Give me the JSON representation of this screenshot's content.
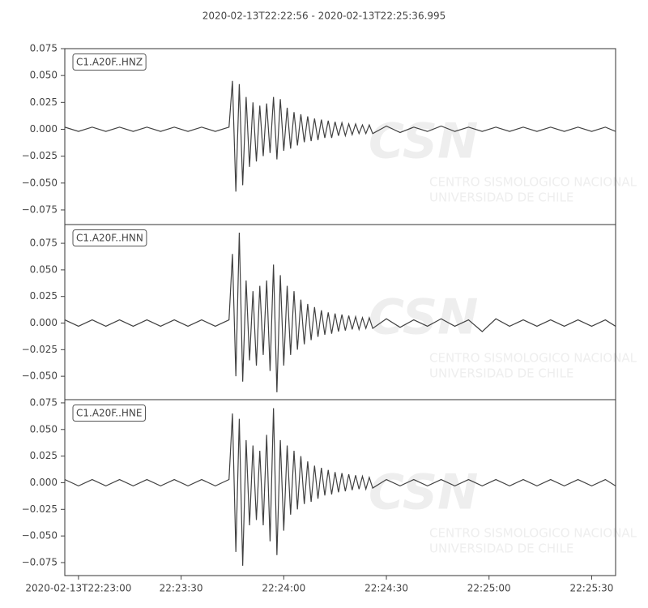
{
  "title": "2020-02-13T22:22:56  -  2020-02-13T22:25:36.995",
  "watermark": {
    "logo": "CSN",
    "line1": "CENTRO SISMOLOGICO NACIONAL",
    "line2": "UNIVERSIDAD DE CHILE"
  },
  "chart_data": [
    {
      "type": "line",
      "x": [
        0,
        4,
        8,
        12,
        16,
        20,
        24,
        28,
        32,
        36,
        40,
        44,
        48,
        49,
        50,
        51,
        52,
        53,
        54,
        55,
        56,
        57,
        58,
        59,
        60,
        61,
        62,
        63,
        64,
        65,
        66,
        67,
        68,
        69,
        70,
        71,
        72,
        73,
        74,
        75,
        76,
        77,
        78,
        79,
        80,
        81,
        82,
        83,
        84,
        85,
        86,
        87,
        88,
        89,
        90,
        94,
        98,
        102,
        106,
        110,
        114,
        118,
        122,
        126,
        130,
        134,
        138,
        142,
        146,
        150,
        154,
        158,
        160.995
      ],
      "series": [
        {
          "name": "C1.A20F..HNZ",
          "color": "#404040",
          "values": [
            0.002,
            -0.002,
            0.002,
            -0.002,
            0.002,
            -0.002,
            0.002,
            -0.002,
            0.002,
            -0.002,
            0.002,
            -0.002,
            0.002,
            0.045,
            -0.058,
            0.042,
            -0.052,
            0.03,
            -0.035,
            0.025,
            -0.03,
            0.022,
            -0.025,
            0.024,
            -0.022,
            0.03,
            -0.028,
            0.028,
            -0.02,
            0.02,
            -0.018,
            0.016,
            -0.015,
            0.014,
            -0.012,
            0.012,
            -0.011,
            0.01,
            -0.01,
            0.009,
            -0.008,
            0.008,
            -0.008,
            0.007,
            -0.006,
            0.006,
            -0.006,
            0.005,
            -0.005,
            0.005,
            -0.004,
            0.004,
            -0.004,
            0.004,
            -0.004,
            0.003,
            -0.003,
            0.002,
            -0.002,
            0.003,
            -0.002,
            0.002,
            -0.002,
            0.002,
            -0.002,
            0.002,
            -0.002,
            0.002,
            -0.002,
            0.002,
            -0.002,
            0.002,
            -0.002
          ]
        }
      ],
      "xlim": [
        0,
        160.995
      ],
      "ylim": [
        -0.0886,
        0.075
      ],
      "yticks": [
        {
          "value": -0.075,
          "label": "−0.075"
        },
        {
          "value": -0.05,
          "label": "−0.050"
        },
        {
          "value": -0.025,
          "label": "−0.025"
        },
        {
          "value": 0,
          "label": "0.000"
        },
        0.025,
        {
          "value": 0.05,
          "label": "0.050"
        },
        0.075
      ]
    },
    {
      "type": "line",
      "x": [
        0,
        4,
        8,
        12,
        16,
        20,
        24,
        28,
        32,
        36,
        40,
        44,
        48,
        49,
        50,
        51,
        52,
        53,
        54,
        55,
        56,
        57,
        58,
        59,
        60,
        61,
        62,
        63,
        64,
        65,
        66,
        67,
        68,
        69,
        70,
        71,
        72,
        73,
        74,
        75,
        76,
        77,
        78,
        79,
        80,
        81,
        82,
        83,
        84,
        85,
        86,
        87,
        88,
        89,
        90,
        94,
        98,
        102,
        106,
        110,
        114,
        118,
        122,
        126,
        130,
        134,
        138,
        142,
        146,
        150,
        154,
        158,
        160.995
      ],
      "series": [
        {
          "name": "C1.A20F..HNN",
          "color": "#404040",
          "values": [
            0.003,
            -0.003,
            0.003,
            -0.003,
            0.003,
            -0.003,
            0.003,
            -0.003,
            0.003,
            -0.003,
            0.003,
            -0.003,
            0.003,
            0.065,
            -0.05,
            0.085,
            -0.055,
            0.04,
            -0.035,
            0.03,
            -0.04,
            0.035,
            -0.03,
            0.04,
            -0.045,
            0.055,
            -0.065,
            0.045,
            -0.04,
            0.035,
            -0.03,
            0.03,
            -0.025,
            0.022,
            -0.02,
            0.018,
            -0.016,
            0.015,
            -0.013,
            0.012,
            -0.011,
            0.01,
            -0.01,
            0.009,
            -0.008,
            0.008,
            -0.007,
            0.007,
            -0.006,
            0.006,
            -0.006,
            0.005,
            -0.005,
            0.005,
            -0.005,
            0.004,
            -0.004,
            0.003,
            -0.003,
            0.004,
            -0.003,
            0.003,
            -0.008,
            0.004,
            -0.003,
            0.003,
            -0.003,
            0.003,
            -0.003,
            0.003,
            -0.003,
            0.003,
            -0.003
          ]
        }
      ],
      "xlim": [
        0,
        160.995
      ],
      "ylim": [
        -0.072,
        0.0926
      ],
      "yticks": [
        {
          "value": -0.05,
          "label": "−0.050"
        },
        {
          "value": -0.025,
          "label": "−0.025"
        },
        {
          "value": 0,
          "label": "0.000"
        },
        0.025,
        {
          "value": 0.05,
          "label": "0.050"
        },
        0.075
      ]
    },
    {
      "type": "line",
      "x": [
        0,
        4,
        8,
        12,
        16,
        20,
        24,
        28,
        32,
        36,
        40,
        44,
        48,
        49,
        50,
        51,
        52,
        53,
        54,
        55,
        56,
        57,
        58,
        59,
        60,
        61,
        62,
        63,
        64,
        65,
        66,
        67,
        68,
        69,
        70,
        71,
        72,
        73,
        74,
        75,
        76,
        77,
        78,
        79,
        80,
        81,
        82,
        83,
        84,
        85,
        86,
        87,
        88,
        89,
        90,
        94,
        98,
        102,
        106,
        110,
        114,
        118,
        122,
        126,
        130,
        134,
        138,
        142,
        146,
        150,
        154,
        158,
        160.995
      ],
      "series": [
        {
          "name": "C1.A20F..HNE",
          "color": "#404040",
          "values": [
            0.003,
            -0.003,
            0.003,
            -0.003,
            0.003,
            -0.003,
            0.003,
            -0.003,
            0.003,
            -0.003,
            0.003,
            -0.003,
            0.003,
            0.065,
            -0.065,
            0.06,
            -0.078,
            0.04,
            -0.04,
            0.035,
            -0.035,
            0.03,
            -0.04,
            0.045,
            -0.055,
            0.07,
            -0.068,
            0.04,
            -0.045,
            0.035,
            -0.03,
            0.03,
            -0.025,
            0.025,
            -0.02,
            0.02,
            -0.018,
            0.016,
            -0.015,
            0.014,
            -0.012,
            0.012,
            -0.011,
            0.01,
            -0.009,
            0.009,
            -0.008,
            0.008,
            -0.007,
            0.007,
            -0.006,
            0.006,
            -0.006,
            0.005,
            -0.005,
            0.003,
            -0.003,
            0.003,
            -0.003,
            0.003,
            -0.003,
            0.003,
            -0.003,
            0.003,
            -0.003,
            0.003,
            -0.003,
            0.003,
            -0.003,
            0.003,
            -0.003,
            0.003,
            -0.003
          ]
        }
      ],
      "xlim": [
        0,
        160.995
      ],
      "ylim": [
        -0.0872,
        0.078
      ],
      "yticks": [
        {
          "value": -0.075,
          "label": "−0.075"
        },
        {
          "value": -0.05,
          "label": "−0.050"
        },
        {
          "value": -0.025,
          "label": "−0.025"
        },
        {
          "value": 0,
          "label": "0.000"
        },
        0.025,
        {
          "value": 0.05,
          "label": "0.050"
        },
        0.075
      ],
      "xticks": [
        {
          "value": 4,
          "label": "2020-02-13T22:23:00"
        },
        {
          "value": 34,
          "label": "22:23:30"
        },
        {
          "value": 64,
          "label": "22:24:00"
        },
        {
          "value": 94,
          "label": "22:24:30"
        },
        {
          "value": 124,
          "label": "22:25:00"
        },
        {
          "value": 154,
          "label": "22:25:30"
        }
      ]
    }
  ]
}
